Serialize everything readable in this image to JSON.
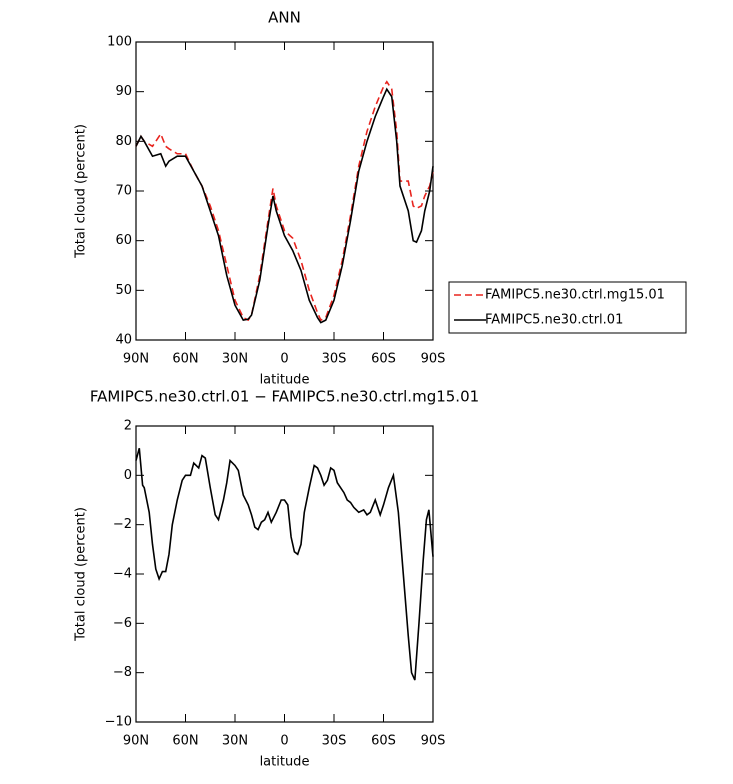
{
  "chart_data": [
    {
      "type": "line",
      "title": "ANN",
      "xlabel": "latitude",
      "ylabel": "Total cloud (percent)",
      "x": [
        90,
        87,
        85,
        80,
        75,
        72,
        70,
        65,
        60,
        55,
        50,
        45,
        40,
        35,
        30,
        25,
        22,
        20,
        15,
        10,
        7,
        5,
        0,
        -5,
        -10,
        -15,
        -20,
        -22,
        -25,
        -30,
        -35,
        -40,
        -45,
        -50,
        -55,
        -60,
        -62,
        -65,
        -68,
        -70,
        -75,
        -78,
        -80,
        -83,
        -85,
        -88,
        -90
      ],
      "series": [
        {
          "name": "FAMIPC5.ne30.ctrl.mg15.01",
          "color": "#e8251f",
          "dash": true,
          "values": [
            79,
            81,
            80,
            79,
            81.5,
            79,
            78.5,
            77.5,
            77.5,
            74,
            71,
            67,
            62,
            55,
            48,
            44.5,
            44,
            45,
            53,
            64,
            70.5,
            67,
            62,
            60.5,
            56,
            50,
            45.5,
            44,
            44.5,
            49,
            56,
            65,
            75,
            82,
            87,
            91,
            92,
            90.5,
            82,
            72,
            72,
            67,
            66.5,
            67,
            69,
            71,
            74
          ]
        },
        {
          "name": "FAMIPC5.ne30.ctrl.01",
          "color": "#000000",
          "dash": false,
          "values": [
            79,
            81,
            80,
            77,
            77.5,
            75,
            76,
            77,
            77,
            74,
            71,
            66,
            61,
            53,
            47,
            44,
            44.2,
            45,
            52,
            63,
            69,
            66,
            61,
            58,
            54,
            48,
            44.5,
            43.5,
            44,
            48,
            55,
            64,
            74,
            80,
            85,
            89,
            90.5,
            89,
            80,
            71,
            66,
            60,
            59.7,
            62,
            66,
            70,
            75
          ]
        }
      ],
      "xlim": [
        90,
        -90
      ],
      "xticks": [
        {
          "value": 90,
          "label": "90N"
        },
        {
          "value": 60,
          "label": "60N"
        },
        {
          "value": 30,
          "label": "30N"
        },
        0,
        {
          "value": -30,
          "label": "30S"
        },
        {
          "value": -60,
          "label": "60S"
        },
        {
          "value": -90,
          "label": "90S"
        }
      ],
      "ylim": [
        40,
        100
      ],
      "yticks": [
        40,
        50,
        60,
        70,
        80,
        90,
        100
      ],
      "legend": "right"
    },
    {
      "type": "line",
      "title": "FAMIPC5.ne30.ctrl.01 − FAMIPC5.ne30.ctrl.mg15.01",
      "xlabel": "latitude",
      "ylabel": "Total cloud (percent)",
      "x": [
        90,
        88,
        86,
        85,
        82,
        80,
        78,
        76,
        74,
        72,
        70,
        68,
        65,
        62,
        60,
        57,
        55,
        52,
        50,
        48,
        45,
        42,
        40,
        37,
        35,
        33,
        30,
        28,
        25,
        22,
        20,
        18,
        16,
        14,
        12,
        10,
        8,
        5,
        2,
        0,
        -2,
        -4,
        -6,
        -8,
        -10,
        -12,
        -15,
        -18,
        -20,
        -22,
        -24,
        -26,
        -28,
        -30,
        -32,
        -34,
        -36,
        -38,
        -40,
        -42,
        -45,
        -48,
        -50,
        -52,
        -55,
        -58,
        -60,
        -63,
        -66,
        -69,
        -72,
        -75,
        -77,
        -79,
        -81.5,
        -84,
        -86,
        -87.5,
        -90
      ],
      "series": [
        {
          "name": "FAMIPC5.ne30.ctrl.01",
          "color": "#000000",
          "dash": false,
          "values": [
            0.6,
            1.1,
            -0.4,
            -0.5,
            -1.5,
            -2.8,
            -3.8,
            -4.2,
            -3.9,
            -3.9,
            -3.2,
            -2,
            -1,
            -0.2,
            0,
            0,
            0.5,
            0.3,
            0.8,
            0.7,
            -0.5,
            -1.6,
            -1.8,
            -1,
            -0.3,
            0.6,
            0.4,
            0.2,
            -0.8,
            -1.2,
            -1.6,
            -2.1,
            -2.2,
            -1.9,
            -1.8,
            -1.5,
            -1.9,
            -1.5,
            -1,
            -1,
            -1.2,
            -2.5,
            -3.1,
            -3.2,
            -2.8,
            -1.5,
            -0.5,
            0.4,
            0.3,
            0,
            -0.4,
            -0.2,
            0.3,
            0.2,
            -0.3,
            -0.5,
            -0.7,
            -1,
            -1.1,
            -1.3,
            -1.5,
            -1.4,
            -1.6,
            -1.5,
            -1,
            -1.6,
            -1.2,
            -0.5,
            0,
            -1.5,
            -4,
            -6.5,
            -8,
            -8.3,
            -6,
            -3.5,
            -1.8,
            -1.4,
            -3.3
          ]
        }
      ],
      "xlim": [
        90,
        -90
      ],
      "xticks": [
        {
          "value": 90,
          "label": "90N"
        },
        {
          "value": 60,
          "label": "60N"
        },
        {
          "value": 30,
          "label": "30N"
        },
        0,
        {
          "value": -30,
          "label": "30S"
        },
        {
          "value": -60,
          "label": "60S"
        },
        {
          "value": -90,
          "label": "90S"
        }
      ],
      "ylim": [
        -10,
        2
      ],
      "yticks": [
        {
          "value": -10,
          "label": "−10"
        },
        {
          "value": -8,
          "label": "−8"
        },
        {
          "value": -6,
          "label": "−6"
        },
        {
          "value": -4,
          "label": "−4"
        },
        {
          "value": -2,
          "label": "−2"
        },
        0,
        2
      ]
    }
  ]
}
